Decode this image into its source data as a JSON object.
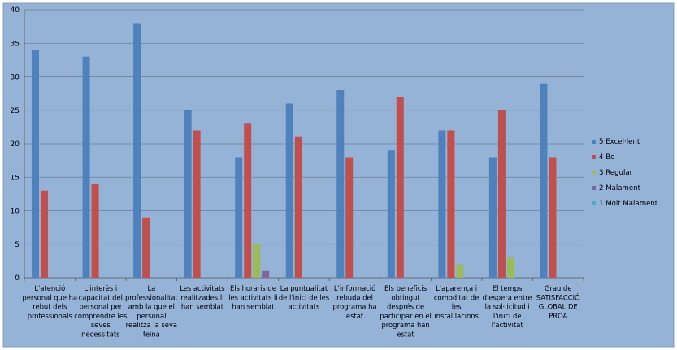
{
  "chart_data": {
    "type": "bar",
    "title": "",
    "xlabel": "",
    "ylabel": "",
    "ylim": [
      0,
      40
    ],
    "yticks": [
      0,
      5,
      10,
      15,
      20,
      25,
      30,
      35,
      40
    ],
    "grid": true,
    "legend_position": "right",
    "background_color": "#95B3D7",
    "categories": [
      [
        "L'atenció",
        "personal que ha",
        "rebut dels",
        "professionals"
      ],
      [
        "L'interès i",
        "capacitat del",
        "personal per",
        "comprendre les",
        "seves",
        "necessitats"
      ],
      [
        "La",
        "professionalitat",
        "amb la que el",
        "personal",
        "realitza la seva",
        "feina"
      ],
      [
        "Les activitats",
        "realitzades li",
        "han semblat"
      ],
      [
        "Els horaris de",
        "les activitats li",
        "han semblat"
      ],
      [
        "La puntualitat",
        "de l'inici de les",
        "activitats"
      ],
      [
        "L'informació",
        "rebuda del",
        "programa ha",
        "estat"
      ],
      [
        "Els beneficis",
        "obtingut",
        "després de",
        "participar en el",
        "programa han",
        "estat"
      ],
      [
        "L'aparença i",
        "comoditat de",
        "les",
        "instal·lacions"
      ],
      [
        "El temps",
        "d'espera entre",
        "la sol·licitud i",
        "l'inici de",
        "l'activitat"
      ],
      [
        "Grau de",
        "SATISFACCIÓ",
        "GLOBAL DE",
        "PROA"
      ]
    ],
    "series": [
      {
        "name": "5 Excel·lent",
        "color": "#4F81BD",
        "values": [
          34,
          33,
          38,
          25,
          18,
          26,
          28,
          19,
          22,
          18,
          29
        ]
      },
      {
        "name": "4 Bo",
        "color": "#C0504D",
        "values": [
          13,
          14,
          9,
          22,
          23,
          21,
          18,
          27,
          22,
          25,
          18
        ]
      },
      {
        "name": "3 Regular",
        "color": "#9BBB59",
        "values": [
          0,
          0,
          0,
          0,
          5,
          0,
          0,
          0,
          2,
          3,
          0
        ]
      },
      {
        "name": "2 Malament",
        "color": "#8064A2",
        "values": [
          0,
          0,
          0,
          0,
          1,
          0,
          0,
          0,
          0,
          0,
          0
        ]
      },
      {
        "name": "1 Molt Malament",
        "color": "#4BACC6",
        "values": [
          0,
          0,
          0,
          0,
          0,
          0,
          0,
          0,
          0,
          0,
          0
        ]
      }
    ]
  }
}
